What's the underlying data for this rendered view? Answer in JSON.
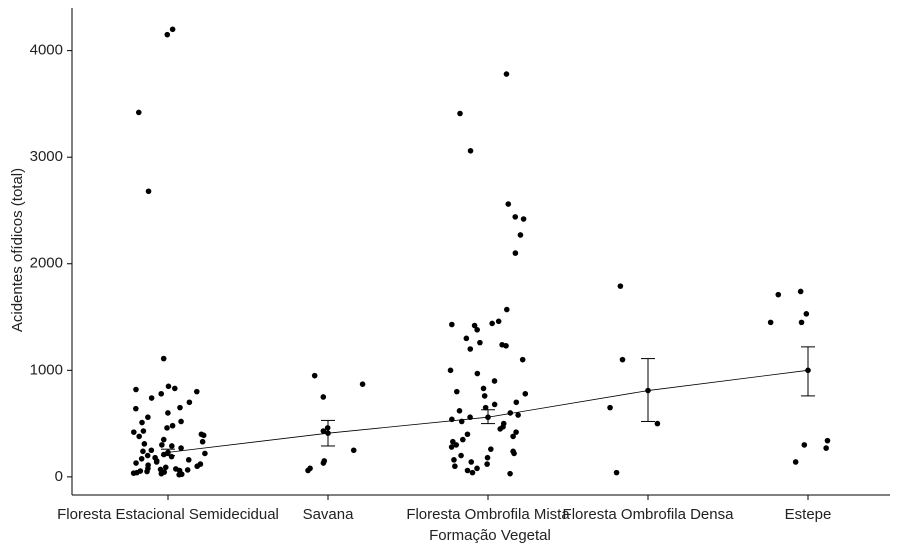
{
  "chart_data": {
    "type": "jitter",
    "x_label": "Formação Vegetal",
    "y_label": "Acidentes ofídicos (total)",
    "categories": [
      "Floresta Estacional Semidecidual",
      "Savana",
      "Floresta Ombrofila Mista",
      "Floresta Ombrofila Densa",
      "Estepe"
    ],
    "points": [
      [
        4150,
        4200,
        3420,
        2680,
        1110,
        850,
        820,
        800,
        830,
        780,
        740,
        700,
        650,
        640,
        600,
        560,
        520,
        510,
        480,
        460,
        430,
        420,
        400,
        390,
        380,
        350,
        330,
        310,
        300,
        290,
        270,
        250,
        240,
        220,
        210,
        200,
        190,
        180,
        170,
        160,
        150,
        140,
        130,
        120,
        110,
        100,
        90,
        80,
        75,
        70,
        65,
        60,
        55,
        50,
        45,
        40,
        35,
        30,
        25,
        20
      ],
      [
        870,
        950,
        750,
        460,
        430,
        250,
        150,
        130,
        80,
        60
      ],
      [
        3780,
        3410,
        3060,
        2560,
        2440,
        2420,
        2270,
        2100,
        1570,
        1460,
        1440,
        1430,
        1420,
        1380,
        1300,
        1260,
        1240,
        1230,
        1200,
        1100,
        1000,
        970,
        900,
        830,
        800,
        780,
        760,
        700,
        680,
        650,
        620,
        600,
        580,
        560,
        540,
        520,
        500,
        470,
        450,
        420,
        400,
        380,
        350,
        330,
        300,
        280,
        260,
        240,
        220,
        200,
        180,
        160,
        140,
        120,
        100,
        80,
        60,
        40,
        30
      ],
      [
        1790,
        1100,
        650,
        500,
        40
      ],
      [
        1740,
        1710,
        1530,
        1450,
        1450,
        340,
        300,
        270,
        140
      ]
    ],
    "mean": [
      230,
      410,
      560,
      810,
      1000
    ],
    "lower": [
      200,
      290,
      500,
      520,
      760
    ],
    "upper": [
      260,
      530,
      630,
      1110,
      1220
    ],
    "color": "#000000",
    "ylim": [
      -170,
      4400
    ],
    "yticks": [
      0,
      1000,
      2000,
      3000,
      4000
    ]
  }
}
